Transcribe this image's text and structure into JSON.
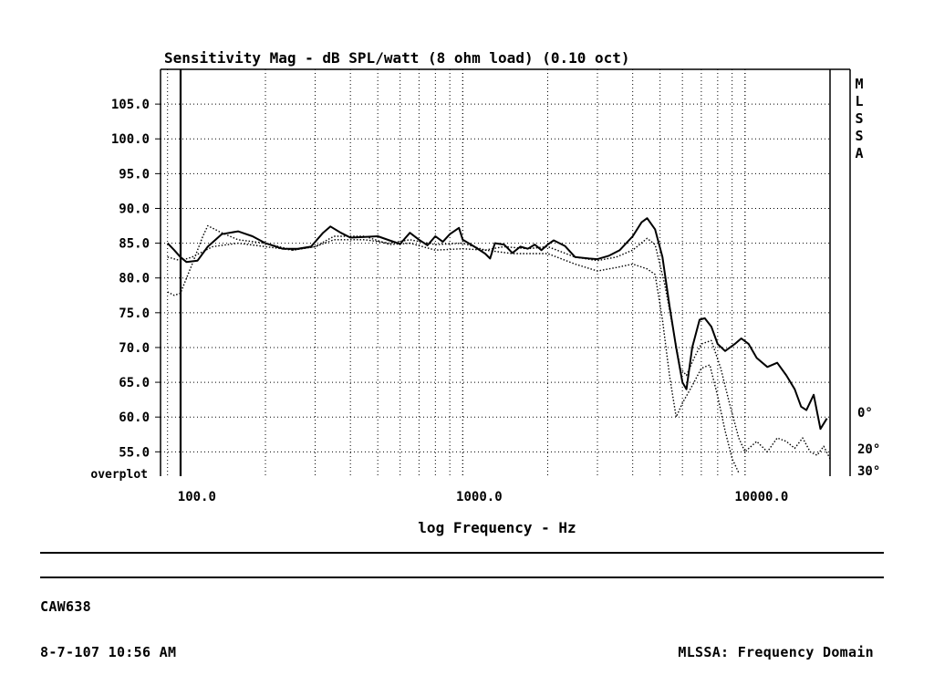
{
  "chart_data": {
    "type": "line",
    "title": "Sensitivity Mag - dB SPL/watt (8 ohm load) (0.10 oct)",
    "xlabel": "log Frequency - Hz",
    "ylabel": "",
    "x_scale": "log",
    "xlim": [
      85,
      20000
    ],
    "ylim": [
      51.5,
      110
    ],
    "grid": true,
    "x_tick_labels": [
      {
        "value": 100,
        "label": "100.0"
      },
      {
        "value": 1000,
        "label": "1000.0"
      },
      {
        "value": 10000,
        "label": "10000.0"
      }
    ],
    "y_ticks": [
      {
        "value": 105,
        "label": "105.0"
      },
      {
        "value": 100,
        "label": "100.0"
      },
      {
        "value": 95,
        "label": "95.0"
      },
      {
        "value": 90,
        "label": "90.0"
      },
      {
        "value": 85,
        "label": "85.0"
      },
      {
        "value": 80,
        "label": "80.0"
      },
      {
        "value": 75,
        "label": "75.0"
      },
      {
        "value": 70,
        "label": "70.0"
      },
      {
        "value": 65,
        "label": "65.0"
      },
      {
        "value": 60,
        "label": "60.0"
      },
      {
        "value": 55,
        "label": "55.0"
      }
    ],
    "bottom_left_label": "overplot",
    "side_label_letters": [
      "M",
      "L",
      "S",
      "S",
      "A"
    ],
    "series": [
      {
        "name": "0°",
        "style": "solid",
        "points": [
          [
            90,
            85
          ],
          [
            95,
            84
          ],
          [
            100,
            83
          ],
          [
            105,
            82.3
          ],
          [
            115,
            82.5
          ],
          [
            125,
            84.5
          ],
          [
            140,
            86.3
          ],
          [
            160,
            86.7
          ],
          [
            180,
            86
          ],
          [
            200,
            85
          ],
          [
            230,
            84.2
          ],
          [
            260,
            84.2
          ],
          [
            290,
            84.5
          ],
          [
            320,
            86.5
          ],
          [
            340,
            87.4
          ],
          [
            370,
            86.5
          ],
          [
            400,
            85.8
          ],
          [
            450,
            85.9
          ],
          [
            500,
            86
          ],
          [
            550,
            85.4
          ],
          [
            600,
            84.9
          ],
          [
            650,
            86.5
          ],
          [
            700,
            85.5
          ],
          [
            750,
            84.7
          ],
          [
            800,
            86
          ],
          [
            850,
            85.2
          ],
          [
            900,
            86.3
          ],
          [
            970,
            87.2
          ],
          [
            1000,
            85.5
          ],
          [
            1100,
            84.5
          ],
          [
            1200,
            83.5
          ],
          [
            1250,
            82.8
          ],
          [
            1300,
            85
          ],
          [
            1400,
            84.8
          ],
          [
            1500,
            83.6
          ],
          [
            1600,
            84.5
          ],
          [
            1700,
            84.2
          ],
          [
            1800,
            84.8
          ],
          [
            1900,
            84
          ],
          [
            2000,
            84.8
          ],
          [
            2100,
            85.4
          ],
          [
            2300,
            84.6
          ],
          [
            2500,
            83
          ],
          [
            2800,
            82.8
          ],
          [
            3000,
            82.7
          ],
          [
            3300,
            83.2
          ],
          [
            3600,
            84
          ],
          [
            4000,
            86
          ],
          [
            4300,
            88
          ],
          [
            4500,
            88.6
          ],
          [
            4800,
            87
          ],
          [
            5100,
            83
          ],
          [
            5400,
            76
          ],
          [
            5700,
            70
          ],
          [
            6000,
            65
          ],
          [
            6200,
            64
          ],
          [
            6500,
            70
          ],
          [
            6900,
            74
          ],
          [
            7200,
            74.2
          ],
          [
            7600,
            73
          ],
          [
            8000,
            70.5
          ],
          [
            8500,
            69.5
          ],
          [
            9200,
            70.5
          ],
          [
            9700,
            71.3
          ],
          [
            10300,
            70.5
          ],
          [
            11000,
            68.5
          ],
          [
            12000,
            67.2
          ],
          [
            13000,
            67.8
          ],
          [
            14000,
            66
          ],
          [
            15000,
            64
          ],
          [
            15800,
            61.5
          ],
          [
            16500,
            61
          ],
          [
            17500,
            63.2
          ],
          [
            18500,
            58.3
          ],
          [
            19500,
            59.8
          ]
        ]
      },
      {
        "name": "20°",
        "style": "dotted",
        "points": [
          [
            90,
            83
          ],
          [
            100,
            82.5
          ],
          [
            110,
            83
          ],
          [
            130,
            84.5
          ],
          [
            160,
            85
          ],
          [
            200,
            84.5
          ],
          [
            250,
            84
          ],
          [
            300,
            84.5
          ],
          [
            350,
            85.5
          ],
          [
            450,
            85.5
          ],
          [
            550,
            85
          ],
          [
            650,
            85.5
          ],
          [
            800,
            84.8
          ],
          [
            1000,
            85
          ],
          [
            1200,
            84
          ],
          [
            1400,
            84.5
          ],
          [
            1700,
            84.2
          ],
          [
            2000,
            84.5
          ],
          [
            2500,
            83
          ],
          [
            3000,
            82.5
          ],
          [
            3500,
            83
          ],
          [
            4000,
            84
          ],
          [
            4500,
            85.7
          ],
          [
            4800,
            84.8
          ],
          [
            5200,
            79
          ],
          [
            5600,
            72
          ],
          [
            5900,
            67
          ],
          [
            6200,
            66
          ],
          [
            6600,
            68.5
          ],
          [
            7000,
            70.5
          ],
          [
            7600,
            71
          ],
          [
            8200,
            67
          ],
          [
            8800,
            62
          ],
          [
            9500,
            57
          ],
          [
            10000,
            55
          ],
          [
            11000,
            56.5
          ],
          [
            12000,
            55
          ],
          [
            13000,
            57
          ],
          [
            14000,
            56.5
          ],
          [
            15000,
            55.5
          ],
          [
            16000,
            57
          ],
          [
            17000,
            55
          ],
          [
            18000,
            54.5
          ],
          [
            19000,
            55.8
          ],
          [
            20000,
            54
          ]
        ]
      },
      {
        "name": "30°",
        "style": "dotted",
        "points": [
          [
            90,
            78
          ],
          [
            95,
            77.5
          ],
          [
            100,
            77.8
          ],
          [
            110,
            82
          ],
          [
            120,
            86
          ],
          [
            125,
            87.5
          ],
          [
            140,
            86.5
          ],
          [
            160,
            85.5
          ],
          [
            200,
            85
          ],
          [
            250,
            84
          ],
          [
            300,
            84.5
          ],
          [
            350,
            86
          ],
          [
            450,
            86
          ],
          [
            550,
            84.8
          ],
          [
            650,
            85
          ],
          [
            800,
            84
          ],
          [
            1000,
            84.2
          ],
          [
            1200,
            84
          ],
          [
            1500,
            83.5
          ],
          [
            2000,
            83.5
          ],
          [
            2500,
            82
          ],
          [
            3000,
            81
          ],
          [
            3500,
            81.5
          ],
          [
            4000,
            82
          ],
          [
            4500,
            81.3
          ],
          [
            4800,
            80.5
          ],
          [
            5100,
            74
          ],
          [
            5400,
            66
          ],
          [
            5700,
            60
          ],
          [
            6000,
            62
          ],
          [
            6500,
            64.5
          ],
          [
            7000,
            67
          ],
          [
            7500,
            67.5
          ],
          [
            8000,
            63
          ],
          [
            8500,
            58
          ],
          [
            9000,
            54
          ],
          [
            9500,
            52
          ]
        ]
      }
    ],
    "series_labels": [
      "0°",
      "20°",
      "30°"
    ]
  },
  "footer": {
    "id": "CAW638",
    "timestamp": "8-7-107 10:56 AM",
    "mode": "MLSSA: Frequency Domain"
  }
}
